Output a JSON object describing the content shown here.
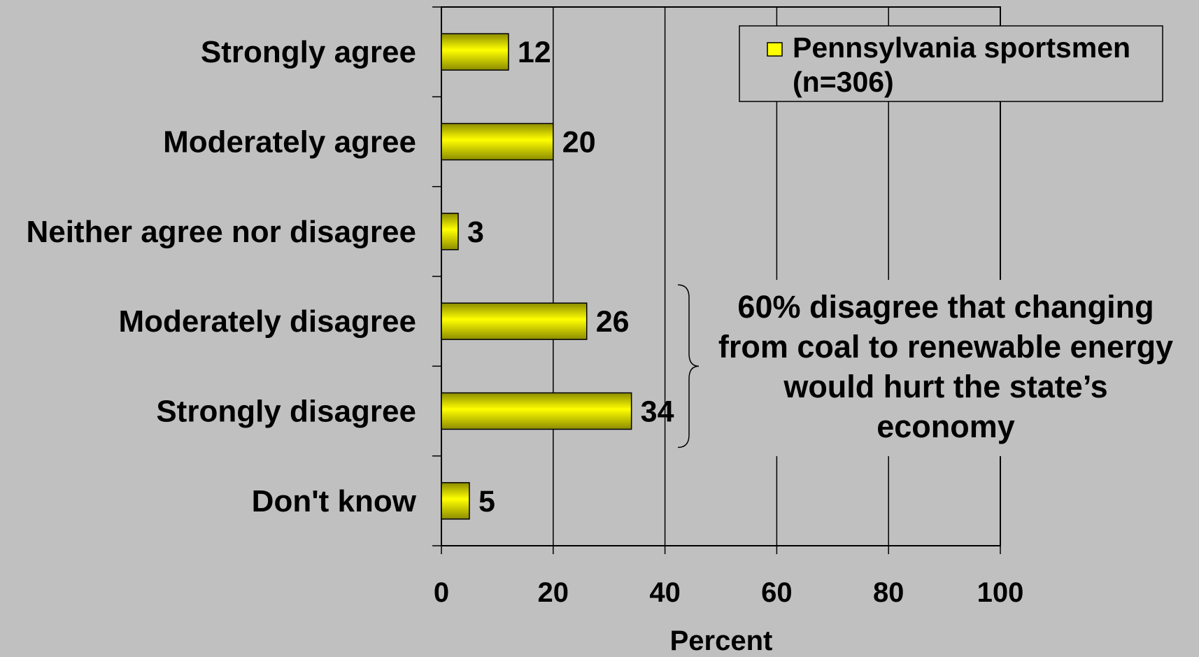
{
  "chart_data": {
    "type": "bar",
    "orientation": "horizontal",
    "categories": [
      "Strongly agree",
      "Moderately agree",
      "Neither agree nor disagree",
      "Moderately disagree",
      "Strongly disagree",
      "Don't know"
    ],
    "series": [
      {
        "name": "Pennsylvania sportsmen (n=306)",
        "legend_lines": [
          "Pennsylvania sportsmen",
          "(n=306)"
        ],
        "values": [
          12,
          20,
          3,
          26,
          34,
          5
        ]
      }
    ],
    "xlabel": "Percent",
    "xlim": [
      0,
      100
    ],
    "xticks": [
      0,
      20,
      40,
      60,
      80,
      100
    ],
    "grid": "vertical",
    "legend": "top-right",
    "annotation": {
      "lines": [
        "60% disagree that changing",
        "from coal to renewable energy",
        "would hurt the state’s",
        "economy"
      ],
      "brace_categories": [
        "Moderately disagree",
        "Strongly disagree"
      ]
    }
  },
  "colors": {
    "background": "#c0c0c0",
    "bar_fill": "#ffff00",
    "bar_shade": "#8c8c00",
    "outline": "#000000"
  }
}
